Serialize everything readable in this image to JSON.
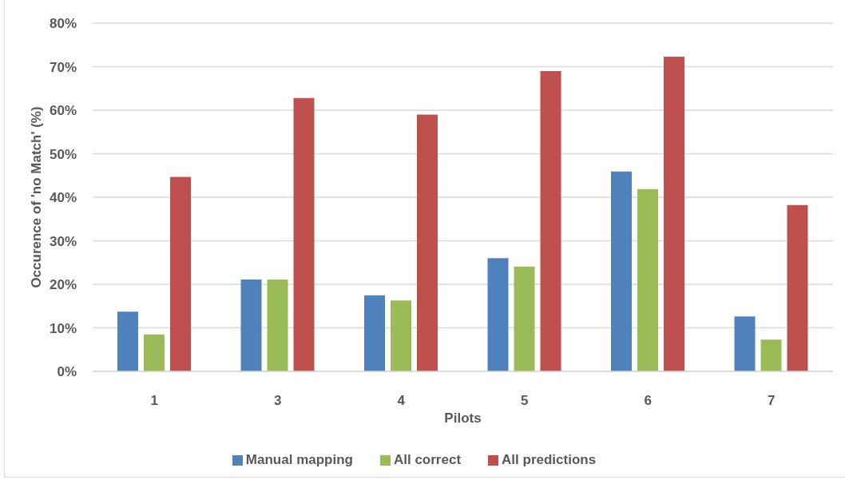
{
  "chart_data": {
    "type": "bar",
    "xlabel": "Pilots",
    "ylabel": "Occurence of 'no Match' (%)",
    "categories": [
      "1",
      "3",
      "4",
      "5",
      "6",
      "7"
    ],
    "series": [
      {
        "name": "Manual mapping",
        "color": "#4f81bd",
        "values": [
          13.7,
          21.1,
          17.5,
          26.0,
          45.9,
          12.6
        ]
      },
      {
        "name": "All correct",
        "color": "#9bbb59",
        "values": [
          8.5,
          21.1,
          16.3,
          24.1,
          41.9,
          7.3
        ]
      },
      {
        "name": "All predictions",
        "color": "#c0504d",
        "values": [
          44.7,
          62.8,
          59.0,
          69.0,
          72.3,
          38.2
        ]
      }
    ],
    "ylim": [
      0,
      80
    ],
    "yticks": [
      {
        "value": 0,
        "label": "0%"
      },
      {
        "value": 10,
        "label": "10%"
      },
      {
        "value": 20,
        "label": "20%"
      },
      {
        "value": 30,
        "label": "30%"
      },
      {
        "value": 40,
        "label": "40%"
      },
      {
        "value": 50,
        "label": "50%"
      },
      {
        "value": 60,
        "label": "60%"
      },
      {
        "value": 70,
        "label": "70%"
      },
      {
        "value": 80,
        "label": "80%"
      }
    ],
    "grid": "y",
    "legend": "bottom"
  }
}
